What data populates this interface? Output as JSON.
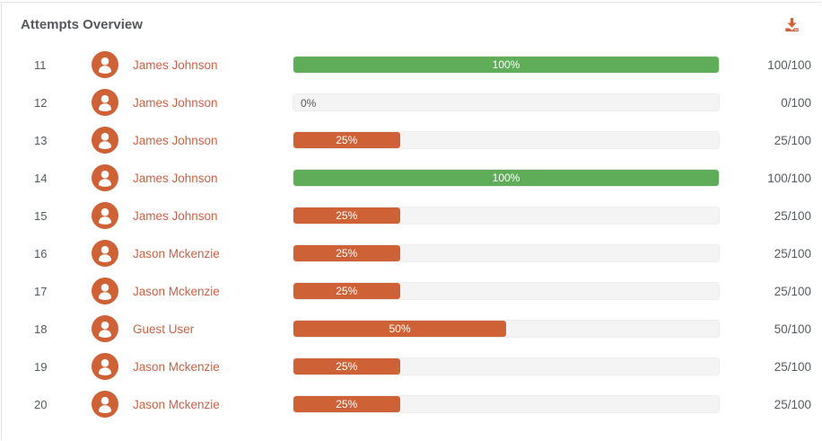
{
  "header": {
    "title": "Attempts Overview",
    "download_icon": "download-icon"
  },
  "colors": {
    "accent_orange": "#cf6137",
    "success_green": "#5fad58",
    "track_gray": "#f4f4f4",
    "name_link": "#c86346",
    "text_gray": "#555b60"
  },
  "rows": [
    {
      "attempt": "11",
      "name": "James Johnson",
      "percent": 100,
      "percent_label": "100%",
      "score": "100/100",
      "bar_color": "green"
    },
    {
      "attempt": "12",
      "name": "James Johnson",
      "percent": 0,
      "percent_label": "0%",
      "score": "0/100",
      "bar_color": "none"
    },
    {
      "attempt": "13",
      "name": "James Johnson",
      "percent": 25,
      "percent_label": "25%",
      "score": "25/100",
      "bar_color": "orange"
    },
    {
      "attempt": "14",
      "name": "James Johnson",
      "percent": 100,
      "percent_label": "100%",
      "score": "100/100",
      "bar_color": "green"
    },
    {
      "attempt": "15",
      "name": "James Johnson",
      "percent": 25,
      "percent_label": "25%",
      "score": "25/100",
      "bar_color": "orange"
    },
    {
      "attempt": "16",
      "name": "Jason Mckenzie",
      "percent": 25,
      "percent_label": "25%",
      "score": "25/100",
      "bar_color": "orange"
    },
    {
      "attempt": "17",
      "name": "Jason Mckenzie",
      "percent": 25,
      "percent_label": "25%",
      "score": "25/100",
      "bar_color": "orange"
    },
    {
      "attempt": "18",
      "name": "Guest User",
      "percent": 50,
      "percent_label": "50%",
      "score": "50/100",
      "bar_color": "orange"
    },
    {
      "attempt": "19",
      "name": "Jason Mckenzie",
      "percent": 25,
      "percent_label": "25%",
      "score": "25/100",
      "bar_color": "orange"
    },
    {
      "attempt": "20",
      "name": "Jason Mckenzie",
      "percent": 25,
      "percent_label": "25%",
      "score": "25/100",
      "bar_color": "orange"
    }
  ]
}
